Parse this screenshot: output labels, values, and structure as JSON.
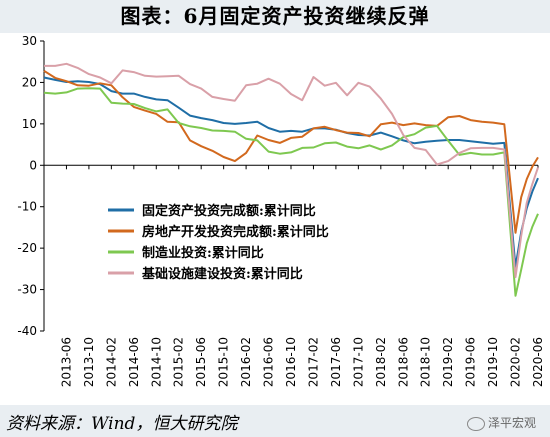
{
  "title": "图表：6月固定资产投资继续反弹",
  "source": "资料来源：Wind，恒大研究院",
  "watermark": "泽平宏观",
  "chart_data": {
    "type": "line",
    "ylim": [
      -40,
      30
    ],
    "yticks": [
      30,
      20,
      10,
      0,
      -10,
      -20,
      -30,
      -40
    ],
    "xticks": [
      "2013-06",
      "2013-10",
      "2014-02",
      "2014-06",
      "2014-10",
      "2015-02",
      "2015-06",
      "2015-10",
      "2016-02",
      "2016-06",
      "2016-10",
      "2017-02",
      "2017-06",
      "2017-10",
      "2018-02",
      "2018-06",
      "2018-10",
      "2019-02",
      "2019-06",
      "2019-10",
      "2020-02",
      "2020-06"
    ],
    "x_start": "2013-02",
    "x_end": "2020-06",
    "grid": false,
    "legend_position": "center-left",
    "series": [
      {
        "name": "固定资产投资完成额:累计同比",
        "color": "#1f6ea6",
        "points": [
          [
            "2013-02",
            21.2
          ],
          [
            "2013-04",
            20.6
          ],
          [
            "2013-06",
            20.1
          ],
          [
            "2013-08",
            20.3
          ],
          [
            "2013-10",
            20.1
          ],
          [
            "2013-12",
            19.6
          ],
          [
            "2014-02",
            17.9
          ],
          [
            "2014-04",
            17.3
          ],
          [
            "2014-06",
            17.3
          ],
          [
            "2014-08",
            16.5
          ],
          [
            "2014-10",
            15.9
          ],
          [
            "2014-12",
            15.7
          ],
          [
            "2015-02",
            13.9
          ],
          [
            "2015-04",
            12.0
          ],
          [
            "2015-06",
            11.4
          ],
          [
            "2015-08",
            10.9
          ],
          [
            "2015-10",
            10.2
          ],
          [
            "2015-12",
            10.0
          ],
          [
            "2016-02",
            10.2
          ],
          [
            "2016-04",
            10.5
          ],
          [
            "2016-06",
            9.0
          ],
          [
            "2016-08",
            8.1
          ],
          [
            "2016-10",
            8.3
          ],
          [
            "2016-12",
            8.1
          ],
          [
            "2017-02",
            8.9
          ],
          [
            "2017-04",
            8.9
          ],
          [
            "2017-06",
            8.6
          ],
          [
            "2017-08",
            7.8
          ],
          [
            "2017-10",
            7.3
          ],
          [
            "2017-12",
            7.2
          ],
          [
            "2018-02",
            7.9
          ],
          [
            "2018-04",
            7.0
          ],
          [
            "2018-06",
            6.0
          ],
          [
            "2018-08",
            5.3
          ],
          [
            "2018-10",
            5.7
          ],
          [
            "2018-12",
            5.9
          ],
          [
            "2019-02",
            6.1
          ],
          [
            "2019-04",
            6.1
          ],
          [
            "2019-06",
            5.8
          ],
          [
            "2019-08",
            5.5
          ],
          [
            "2019-10",
            5.2
          ],
          [
            "2019-12",
            5.4
          ],
          [
            "2020-02",
            -24.5
          ],
          [
            "2020-03",
            -16.1
          ],
          [
            "2020-04",
            -10.3
          ],
          [
            "2020-05",
            -6.3
          ],
          [
            "2020-06",
            -3.1
          ]
        ]
      },
      {
        "name": "房地产开发投资完成额:累计同比",
        "color": "#d2691e",
        "points": [
          [
            "2013-02",
            22.8
          ],
          [
            "2013-04",
            21.1
          ],
          [
            "2013-06",
            20.3
          ],
          [
            "2013-08",
            19.3
          ],
          [
            "2013-10",
            19.2
          ],
          [
            "2013-12",
            19.8
          ],
          [
            "2014-02",
            19.3
          ],
          [
            "2014-04",
            16.4
          ],
          [
            "2014-06",
            14.1
          ],
          [
            "2014-08",
            13.2
          ],
          [
            "2014-10",
            12.4
          ],
          [
            "2014-12",
            10.5
          ],
          [
            "2015-02",
            10.4
          ],
          [
            "2015-04",
            6.0
          ],
          [
            "2015-06",
            4.6
          ],
          [
            "2015-08",
            3.5
          ],
          [
            "2015-10",
            2.0
          ],
          [
            "2015-12",
            1.0
          ],
          [
            "2016-02",
            3.0
          ],
          [
            "2016-04",
            7.2
          ],
          [
            "2016-06",
            6.1
          ],
          [
            "2016-08",
            5.4
          ],
          [
            "2016-10",
            6.6
          ],
          [
            "2016-12",
            6.9
          ],
          [
            "2017-02",
            8.9
          ],
          [
            "2017-04",
            9.3
          ],
          [
            "2017-06",
            8.5
          ],
          [
            "2017-08",
            7.9
          ],
          [
            "2017-10",
            7.8
          ],
          [
            "2017-12",
            7.0
          ],
          [
            "2018-02",
            9.9
          ],
          [
            "2018-04",
            10.3
          ],
          [
            "2018-06",
            9.7
          ],
          [
            "2018-08",
            10.1
          ],
          [
            "2018-10",
            9.7
          ],
          [
            "2018-12",
            9.5
          ],
          [
            "2019-02",
            11.6
          ],
          [
            "2019-04",
            11.9
          ],
          [
            "2019-06",
            10.9
          ],
          [
            "2019-08",
            10.5
          ],
          [
            "2019-10",
            10.3
          ],
          [
            "2019-12",
            9.9
          ],
          [
            "2020-02",
            -16.3
          ],
          [
            "2020-03",
            -7.7
          ],
          [
            "2020-04",
            -3.3
          ],
          [
            "2020-05",
            -0.3
          ],
          [
            "2020-06",
            1.9
          ]
        ]
      },
      {
        "name": "制造业投资:累计同比",
        "color": "#7ec850",
        "points": [
          [
            "2013-02",
            17.5
          ],
          [
            "2013-04",
            17.3
          ],
          [
            "2013-06",
            17.6
          ],
          [
            "2013-08",
            18.5
          ],
          [
            "2013-10",
            18.6
          ],
          [
            "2013-12",
            18.5
          ],
          [
            "2014-02",
            15.1
          ],
          [
            "2014-04",
            14.9
          ],
          [
            "2014-06",
            14.8
          ],
          [
            "2014-08",
            13.8
          ],
          [
            "2014-10",
            13.0
          ],
          [
            "2014-12",
            13.5
          ],
          [
            "2015-02",
            10.2
          ],
          [
            "2015-04",
            9.4
          ],
          [
            "2015-06",
            9.0
          ],
          [
            "2015-08",
            8.4
          ],
          [
            "2015-10",
            8.3
          ],
          [
            "2015-12",
            8.1
          ],
          [
            "2016-02",
            6.4
          ],
          [
            "2016-04",
            6.0
          ],
          [
            "2016-06",
            3.3
          ],
          [
            "2016-08",
            2.8
          ],
          [
            "2016-10",
            3.1
          ],
          [
            "2016-12",
            4.2
          ],
          [
            "2017-02",
            4.3
          ],
          [
            "2017-04",
            5.3
          ],
          [
            "2017-06",
            5.5
          ],
          [
            "2017-08",
            4.5
          ],
          [
            "2017-10",
            4.1
          ],
          [
            "2017-12",
            4.8
          ],
          [
            "2018-02",
            3.8
          ],
          [
            "2018-04",
            4.8
          ],
          [
            "2018-06",
            6.8
          ],
          [
            "2018-08",
            7.5
          ],
          [
            "2018-10",
            9.1
          ],
          [
            "2018-12",
            9.5
          ],
          [
            "2019-02",
            5.9
          ],
          [
            "2019-04",
            2.5
          ],
          [
            "2019-06",
            3.0
          ],
          [
            "2019-08",
            2.6
          ],
          [
            "2019-10",
            2.6
          ],
          [
            "2019-12",
            3.1
          ],
          [
            "2020-02",
            -31.5
          ],
          [
            "2020-03",
            -25.2
          ],
          [
            "2020-04",
            -18.8
          ],
          [
            "2020-05",
            -14.8
          ],
          [
            "2020-06",
            -11.7
          ]
        ]
      },
      {
        "name": "基础设施建设投资:累计同比",
        "color": "#d9a0a8",
        "points": [
          [
            "2013-02",
            24.0
          ],
          [
            "2013-04",
            24.0
          ],
          [
            "2013-06",
            24.5
          ],
          [
            "2013-08",
            23.5
          ],
          [
            "2013-10",
            22.0
          ],
          [
            "2013-12",
            21.2
          ],
          [
            "2014-02",
            19.8
          ],
          [
            "2014-04",
            22.9
          ],
          [
            "2014-06",
            22.5
          ],
          [
            "2014-08",
            21.6
          ],
          [
            "2014-10",
            21.4
          ],
          [
            "2014-12",
            21.5
          ],
          [
            "2015-02",
            21.6
          ],
          [
            "2015-04",
            19.6
          ],
          [
            "2015-06",
            18.5
          ],
          [
            "2015-08",
            16.5
          ],
          [
            "2015-10",
            16.0
          ],
          [
            "2015-12",
            15.6
          ],
          [
            "2016-02",
            19.3
          ],
          [
            "2016-04",
            19.7
          ],
          [
            "2016-06",
            20.9
          ],
          [
            "2016-08",
            19.7
          ],
          [
            "2016-10",
            17.2
          ],
          [
            "2016-12",
            15.7
          ],
          [
            "2017-02",
            21.3
          ],
          [
            "2017-04",
            19.2
          ],
          [
            "2017-06",
            19.9
          ],
          [
            "2017-08",
            16.9
          ],
          [
            "2017-10",
            19.9
          ],
          [
            "2017-12",
            19.0
          ],
          [
            "2018-02",
            16.1
          ],
          [
            "2018-04",
            12.4
          ],
          [
            "2018-06",
            7.3
          ],
          [
            "2018-08",
            4.2
          ],
          [
            "2018-10",
            3.7
          ],
          [
            "2018-12",
            0.2
          ],
          [
            "2019-02",
            1.0
          ],
          [
            "2019-04",
            3.0
          ],
          [
            "2019-06",
            4.1
          ],
          [
            "2019-08",
            4.2
          ],
          [
            "2019-10",
            4.2
          ],
          [
            "2019-12",
            3.8
          ],
          [
            "2020-02",
            -27.0
          ],
          [
            "2020-03",
            -17.0
          ],
          [
            "2020-04",
            -9.0
          ],
          [
            "2020-05",
            -4.5
          ],
          [
            "2020-06",
            -0.5
          ]
        ]
      }
    ]
  }
}
